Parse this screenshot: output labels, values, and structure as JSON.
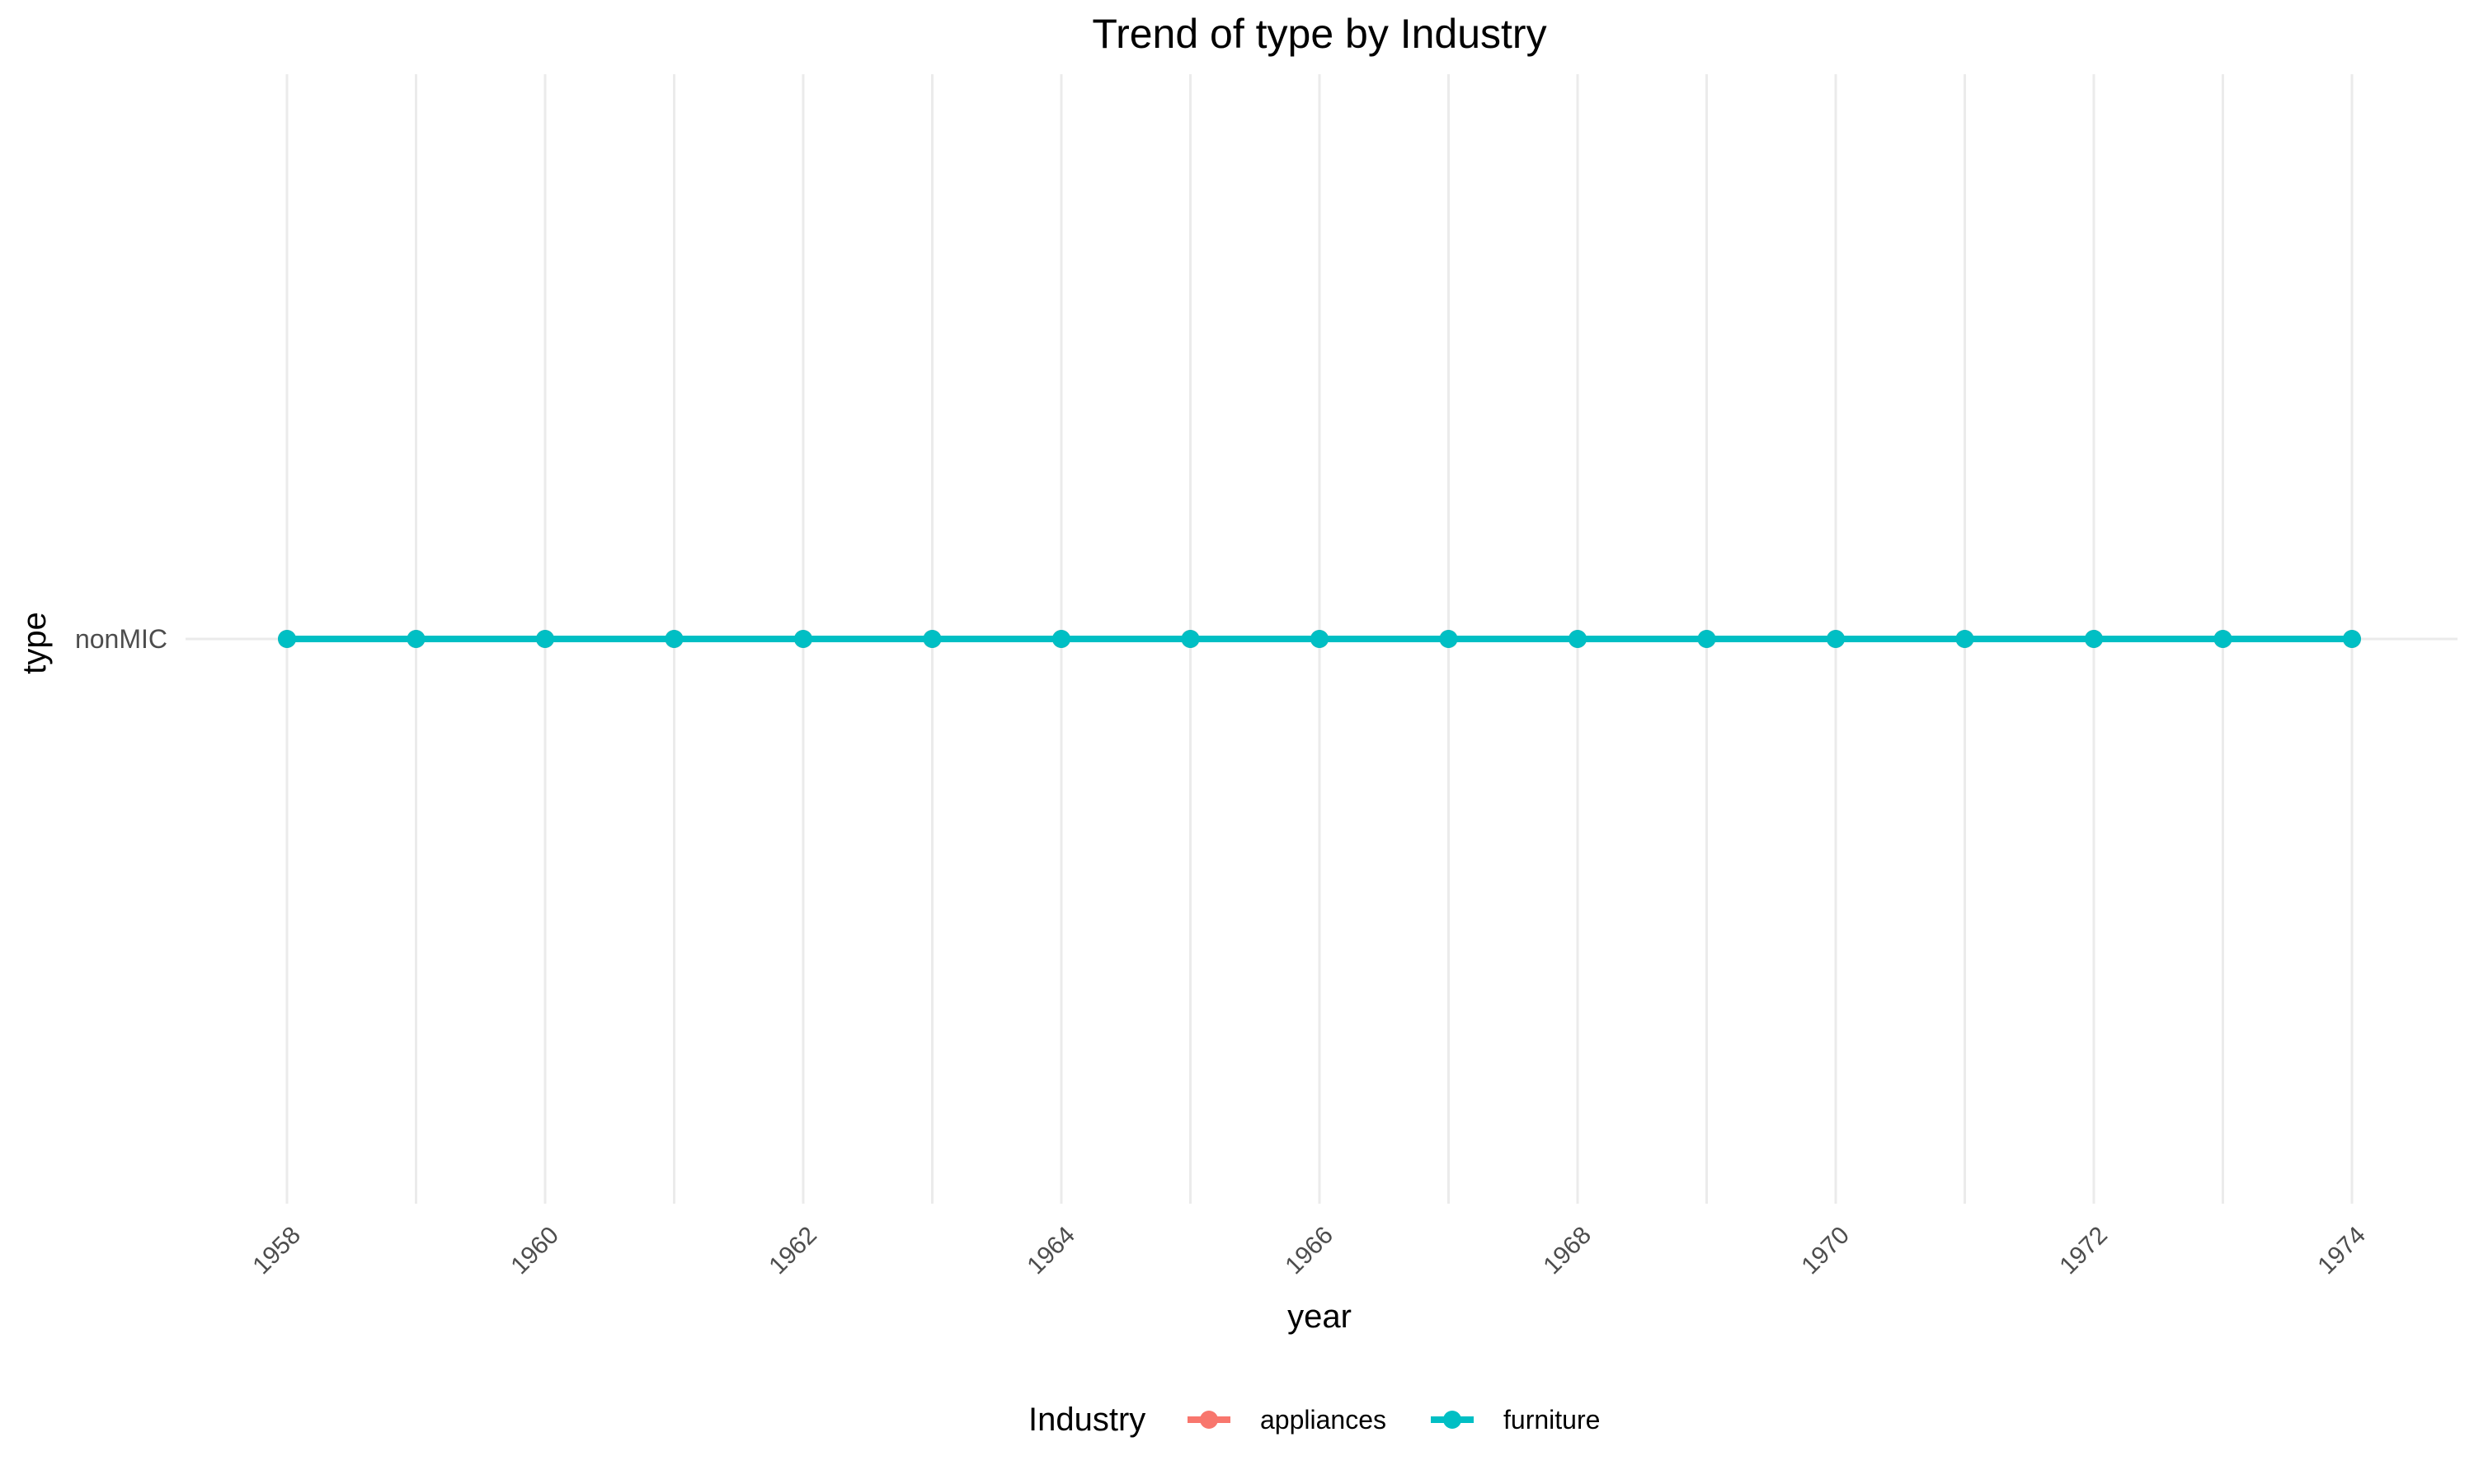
{
  "chart_data": {
    "type": "line",
    "title": "Trend of type by Industry",
    "xlabel": "year",
    "ylabel": "type",
    "x": [
      1958,
      1959,
      1960,
      1961,
      1962,
      1963,
      1964,
      1965,
      1966,
      1967,
      1968,
      1969,
      1970,
      1971,
      1972,
      1973,
      1974
    ],
    "x_ticks": [
      1958,
      1960,
      1962,
      1964,
      1966,
      1968,
      1970,
      1972,
      1974
    ],
    "y_categories": [
      "nonMIC"
    ],
    "xlim": [
      1958,
      1974
    ],
    "grid": true,
    "legend": {
      "title": "Industry",
      "position": "bottom",
      "entries": [
        {
          "name": "appliances",
          "color": "#F8766D"
        },
        {
          "name": "furniture",
          "color": "#00BFC4"
        }
      ]
    },
    "series": [
      {
        "name": "appliances",
        "color": "#F8766D",
        "values": [
          "nonMIC",
          "nonMIC",
          "nonMIC",
          "nonMIC",
          "nonMIC",
          "nonMIC",
          "nonMIC",
          "nonMIC",
          "nonMIC",
          "nonMIC",
          "nonMIC",
          "nonMIC",
          "nonMIC",
          "nonMIC",
          "nonMIC",
          "nonMIC",
          "nonMIC"
        ]
      },
      {
        "name": "furniture",
        "color": "#00BFC4",
        "values": [
          "nonMIC",
          "nonMIC",
          "nonMIC",
          "nonMIC",
          "nonMIC",
          "nonMIC",
          "nonMIC",
          "nonMIC",
          "nonMIC",
          "nonMIC",
          "nonMIC",
          "nonMIC",
          "nonMIC",
          "nonMIC",
          "nonMIC",
          "nonMIC",
          "nonMIC"
        ]
      }
    ]
  }
}
